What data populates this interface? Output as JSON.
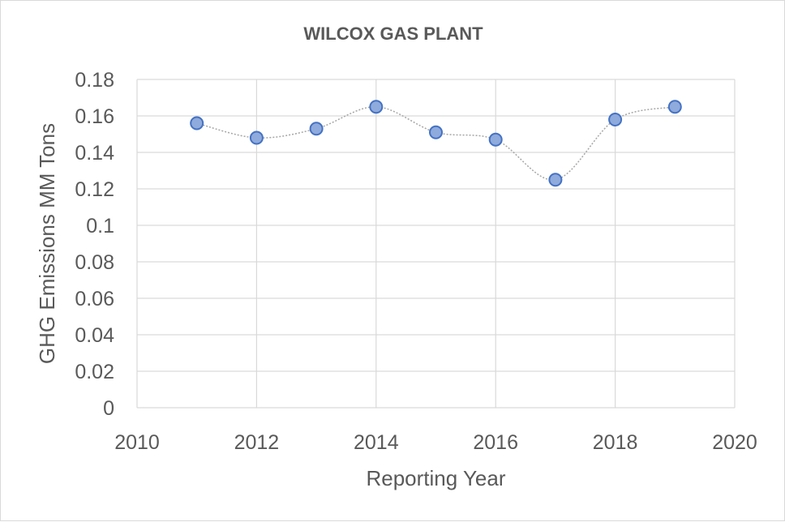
{
  "chart_data": {
    "type": "scatter",
    "title": "WILCOX GAS PLANT",
    "xlabel": "Reporting Year",
    "ylabel": "GHG Emissions MM Tons",
    "xlim": [
      2010,
      2020
    ],
    "ylim": [
      0,
      0.18
    ],
    "x_ticks": [
      "2010",
      "2012",
      "2014",
      "2016",
      "2018",
      "2020"
    ],
    "y_ticks": [
      "0",
      "0.02",
      "0.04",
      "0.06",
      "0.08",
      "0.1",
      "0.12",
      "0.14",
      "0.16",
      "0.18"
    ],
    "grid": true,
    "smoothed_line": true,
    "marker_color": "#8faadc",
    "marker_edge_color": "#4472c4",
    "line_color": "#a6a6a6",
    "x": [
      2011,
      2012,
      2013,
      2014,
      2015,
      2016,
      2017,
      2018,
      2019
    ],
    "y": [
      0.156,
      0.148,
      0.153,
      0.165,
      0.151,
      0.147,
      0.125,
      0.158,
      0.165
    ]
  }
}
